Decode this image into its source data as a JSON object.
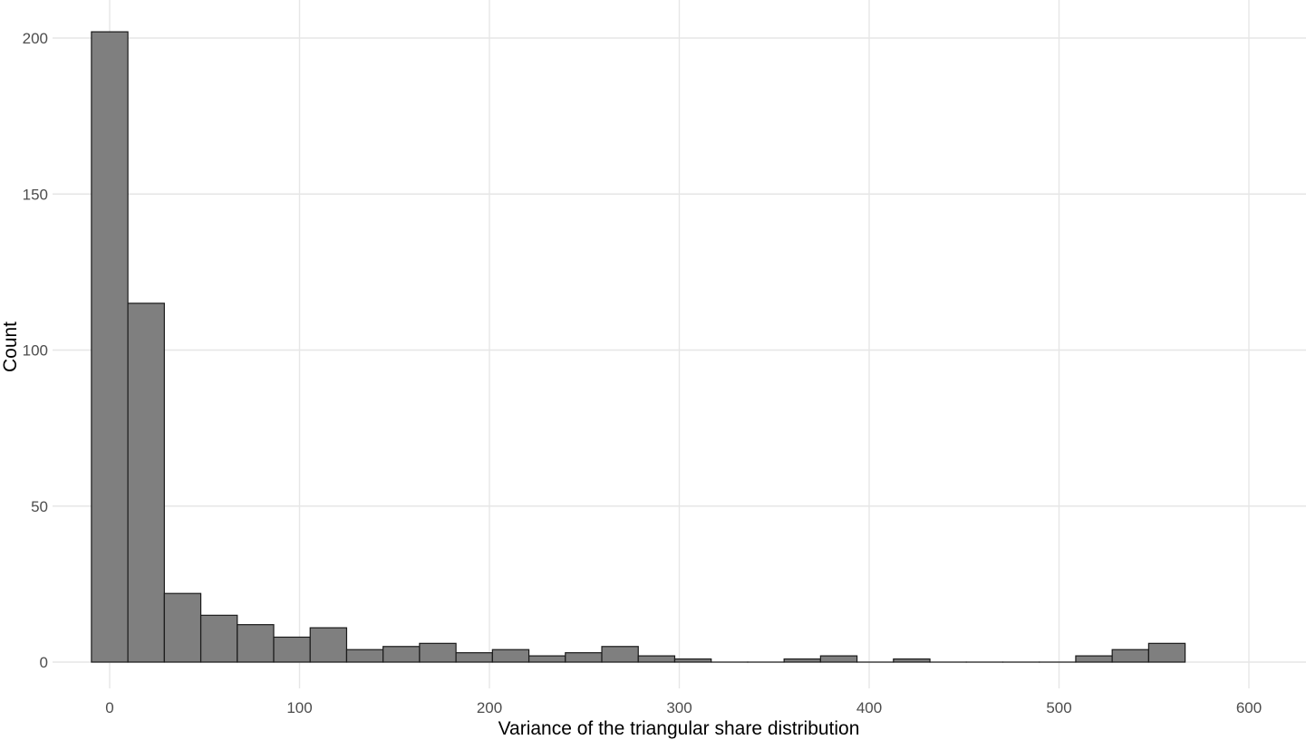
{
  "chart_data": {
    "type": "bar",
    "xlabel": "Variance of the triangular share distribution",
    "ylabel": "Count",
    "xlim": [
      -10,
      620
    ],
    "ylim": [
      0,
      200
    ],
    "x_ticks": [
      0,
      100,
      200,
      300,
      400,
      500,
      600
    ],
    "y_ticks": [
      0,
      50,
      100,
      150,
      200
    ],
    "grid": true,
    "bin_width": 19.2,
    "bins": [
      {
        "x0": -9.6,
        "x1": 9.6,
        "count": 202
      },
      {
        "x0": 9.6,
        "x1": 28.8,
        "count": 115
      },
      {
        "x0": 28.8,
        "x1": 48.0,
        "count": 22
      },
      {
        "x0": 48.0,
        "x1": 67.2,
        "count": 15
      },
      {
        "x0": 67.2,
        "x1": 86.4,
        "count": 12
      },
      {
        "x0": 86.4,
        "x1": 105.6,
        "count": 8
      },
      {
        "x0": 105.6,
        "x1": 124.8,
        "count": 11
      },
      {
        "x0": 124.8,
        "x1": 144.0,
        "count": 4
      },
      {
        "x0": 144.0,
        "x1": 163.2,
        "count": 5
      },
      {
        "x0": 163.2,
        "x1": 182.4,
        "count": 6
      },
      {
        "x0": 182.4,
        "x1": 201.6,
        "count": 3
      },
      {
        "x0": 201.6,
        "x1": 220.8,
        "count": 4
      },
      {
        "x0": 220.8,
        "x1": 240.0,
        "count": 2
      },
      {
        "x0": 240.0,
        "x1": 259.2,
        "count": 3
      },
      {
        "x0": 259.2,
        "x1": 278.4,
        "count": 5
      },
      {
        "x0": 278.4,
        "x1": 297.6,
        "count": 2
      },
      {
        "x0": 297.6,
        "x1": 316.8,
        "count": 1
      },
      {
        "x0": 316.8,
        "x1": 336.0,
        "count": 0
      },
      {
        "x0": 336.0,
        "x1": 355.2,
        "count": 0
      },
      {
        "x0": 355.2,
        "x1": 374.4,
        "count": 1
      },
      {
        "x0": 374.4,
        "x1": 393.6,
        "count": 2
      },
      {
        "x0": 393.6,
        "x1": 412.8,
        "count": 0
      },
      {
        "x0": 412.8,
        "x1": 432.0,
        "count": 1
      },
      {
        "x0": 432.0,
        "x1": 451.2,
        "count": 0
      },
      {
        "x0": 451.2,
        "x1": 470.4,
        "count": 0
      },
      {
        "x0": 470.4,
        "x1": 489.6,
        "count": 0
      },
      {
        "x0": 489.6,
        "x1": 508.8,
        "count": 0
      },
      {
        "x0": 508.8,
        "x1": 528.0,
        "count": 2
      },
      {
        "x0": 528.0,
        "x1": 547.2,
        "count": 4
      },
      {
        "x0": 547.2,
        "x1": 566.4,
        "count": 6
      }
    ],
    "colors": {
      "bar_fill": "#7f7f7f",
      "bar_stroke": "#1a1a1a",
      "grid": "#e6e6e6"
    }
  }
}
